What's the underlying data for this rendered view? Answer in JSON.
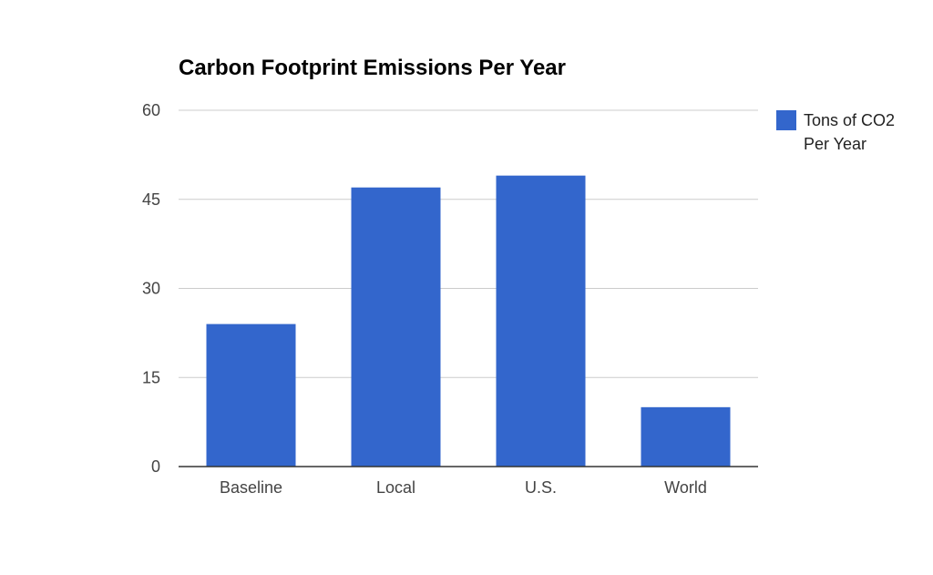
{
  "chart_data": {
    "type": "bar",
    "title": "Carbon Footprint Emissions Per Year",
    "categories": [
      "Baseline",
      "Local",
      "U.S.",
      "World"
    ],
    "series": [
      {
        "name": "Tons of CO2 Per Year",
        "values": [
          24,
          47,
          49,
          10
        ],
        "color": "#3366cc"
      }
    ],
    "xlabel": "",
    "ylabel": "",
    "ylim": [
      0,
      60
    ],
    "yticks": [
      0,
      15,
      30,
      45,
      60
    ],
    "grid": true,
    "legend": {
      "position": "right",
      "lines": [
        "Tons of CO2",
        "Per Year"
      ]
    }
  }
}
